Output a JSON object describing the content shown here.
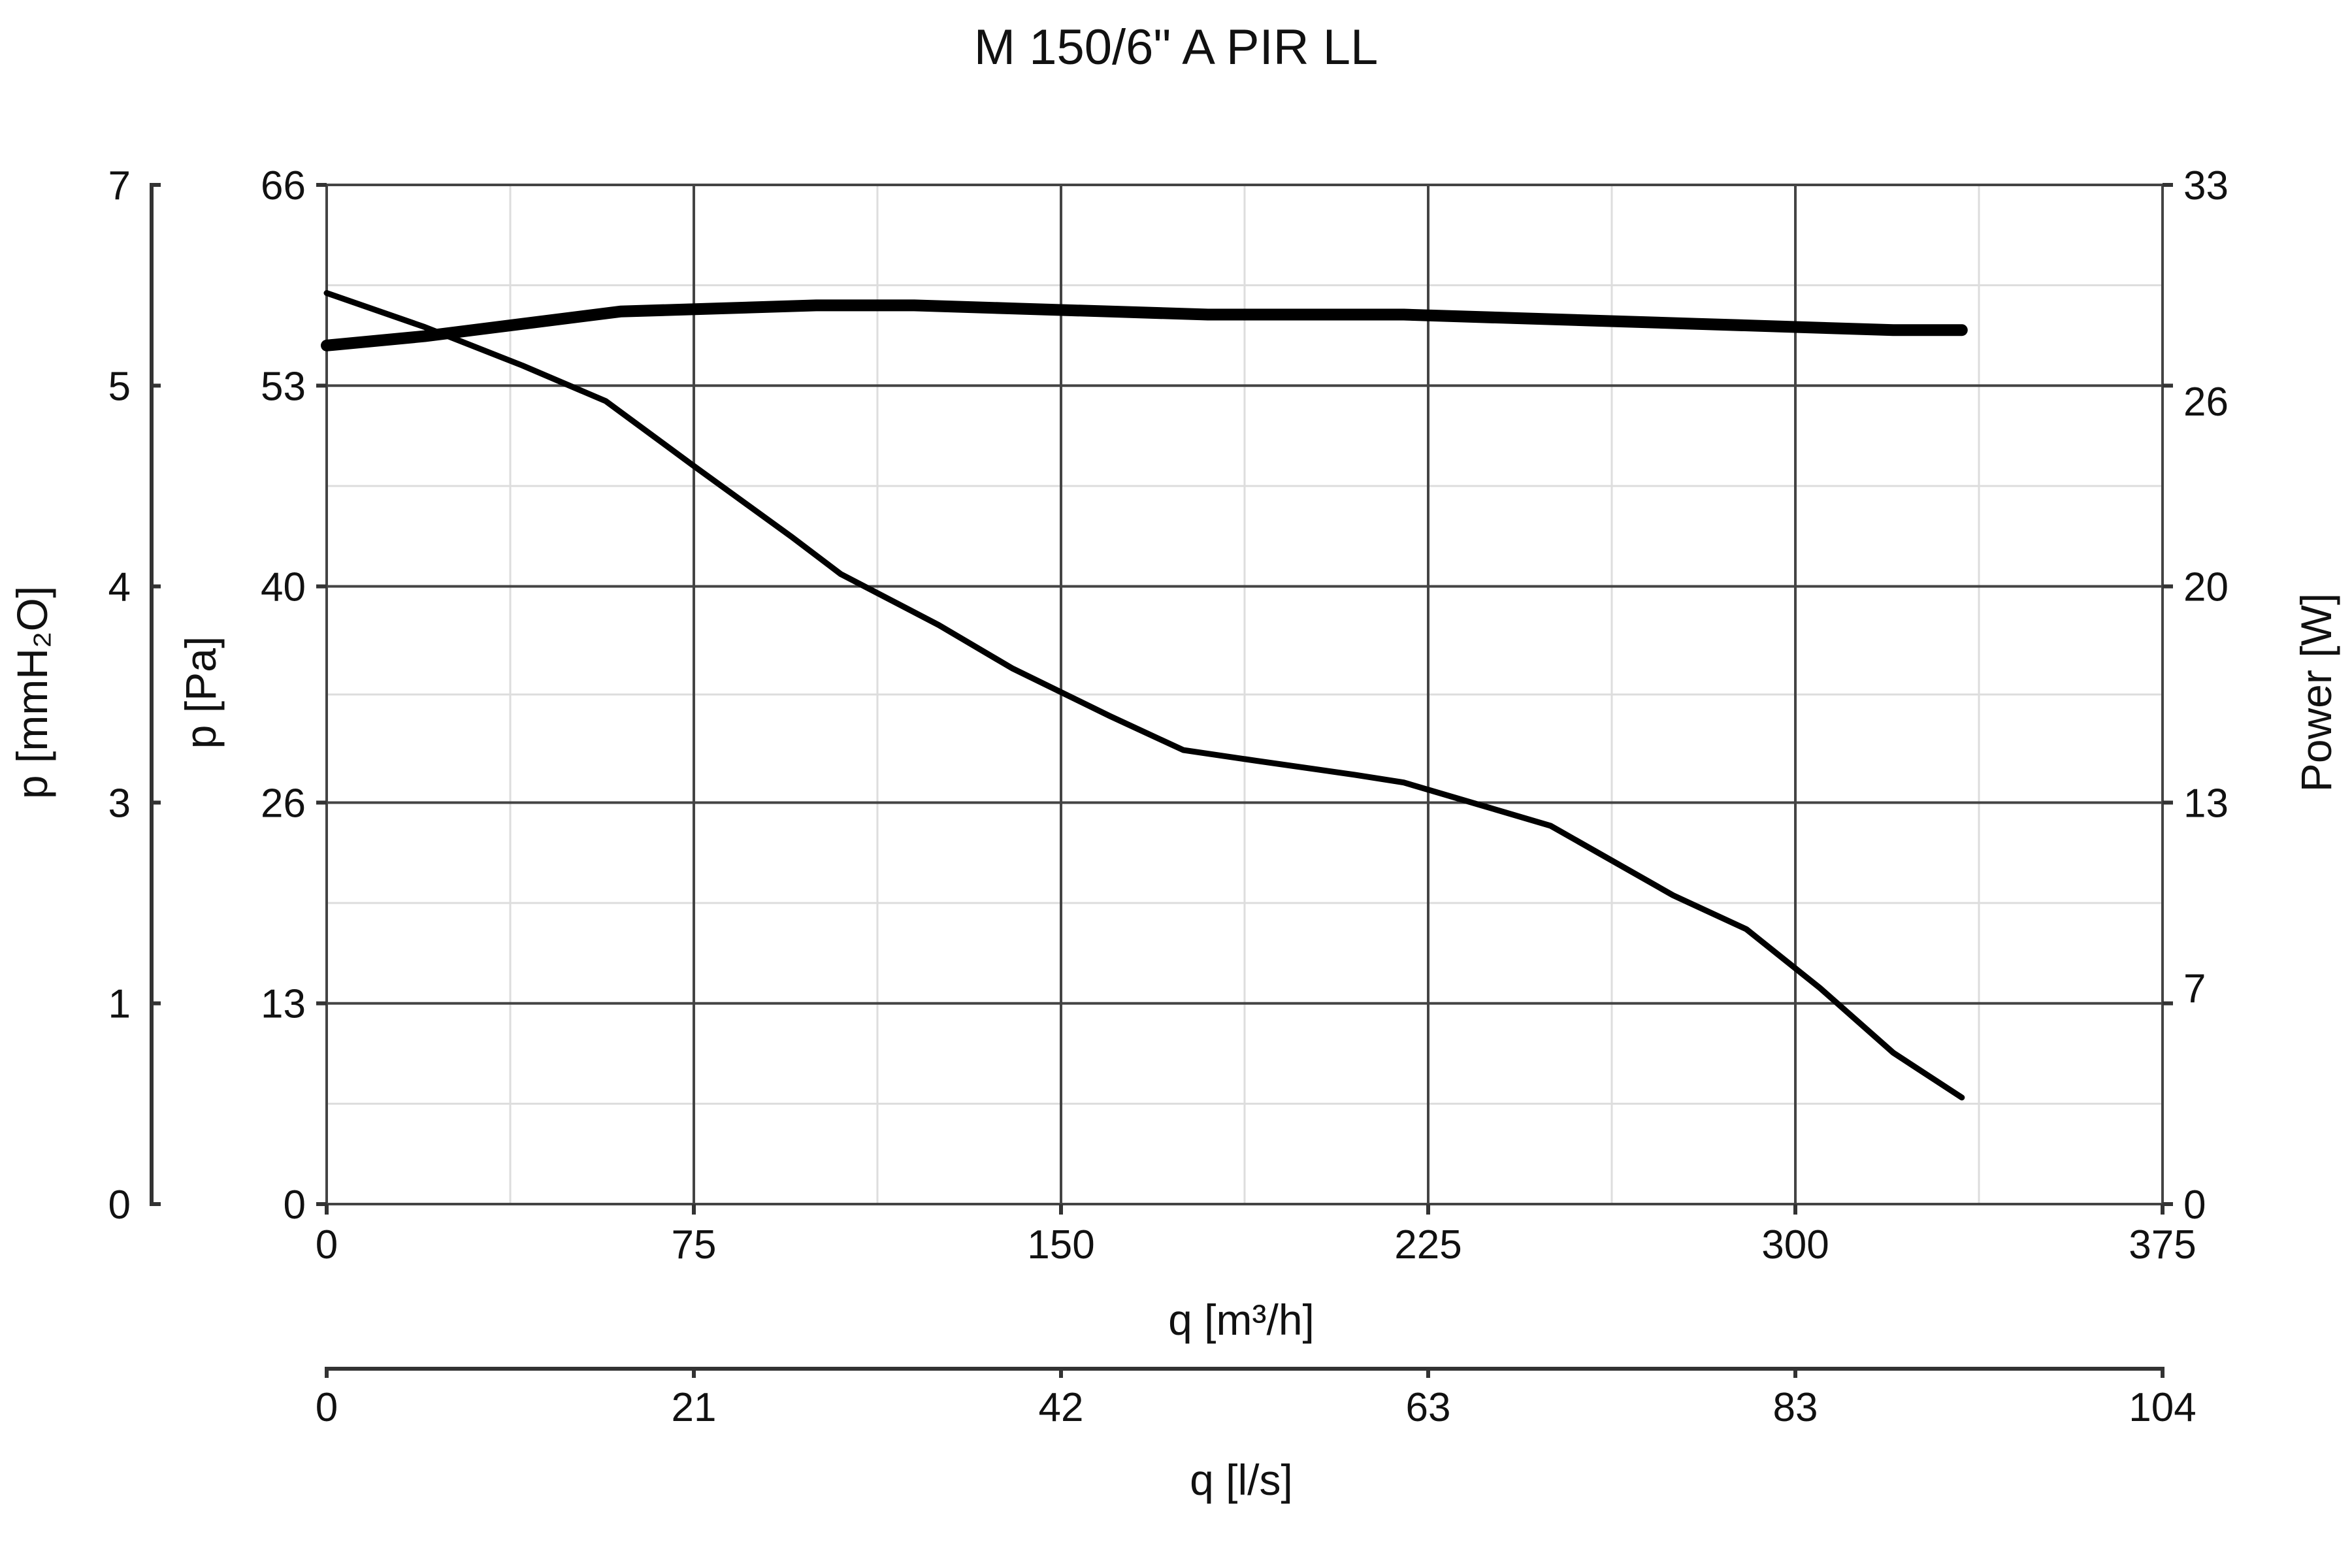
{
  "chart_data": {
    "type": "line",
    "title": "M 150/6\" A PIR LL",
    "x_axis": {
      "label": "q [m³/h]",
      "range": [
        0,
        375
      ],
      "ticks": [
        0,
        75,
        150,
        225,
        300,
        375
      ]
    },
    "x2_axis": {
      "label": "q [l/s]",
      "range": [
        0,
        104.17
      ],
      "ticks": [
        0,
        21,
        42,
        63,
        83,
        104
      ],
      "tick_values_m3h": [
        0,
        75,
        150,
        225,
        300,
        375
      ]
    },
    "y_axis": {
      "label": "p [Pa]",
      "range": [
        0,
        66
      ],
      "ticks": [
        0,
        13,
        26,
        40,
        53,
        66
      ]
    },
    "y2_axis": {
      "label": "Power [W]",
      "range": [
        0,
        33
      ],
      "ticks": [
        0,
        7,
        13,
        20,
        26,
        33
      ]
    },
    "y_outer_axis": {
      "label": "p [mmH₂O]",
      "range": [
        0,
        6.73
      ],
      "ticks": [
        0,
        1,
        3,
        4,
        5,
        7
      ],
      "tick_values_pa": [
        0,
        13,
        26,
        40,
        53,
        66
      ]
    },
    "grid": true,
    "series": [
      {
        "axis": "pressure",
        "x": [
          0,
          20,
          40,
          57,
          75,
          95,
          105,
          125,
          140,
          160,
          175,
          190,
          210,
          220,
          235,
          250,
          265,
          275,
          290,
          305,
          320,
          334
        ],
        "y": [
          59.0,
          56.8,
          54.3,
          52.0,
          47.8,
          43.2,
          40.8,
          37.5,
          34.7,
          31.6,
          29.4,
          28.7,
          27.8,
          27.3,
          25.9,
          24.5,
          21.8,
          20.0,
          17.8,
          14.0,
          9.8,
          6.9
        ]
      },
      {
        "axis": "power",
        "x": [
          0,
          20,
          40,
          60,
          80,
          100,
          120,
          140,
          160,
          180,
          200,
          220,
          240,
          260,
          280,
          300,
          320,
          334
        ],
        "y": [
          27.8,
          28.1,
          28.5,
          28.9,
          29.0,
          29.1,
          29.1,
          29.0,
          28.9,
          28.8,
          28.8,
          28.8,
          28.7,
          28.6,
          28.5,
          28.4,
          28.3,
          28.3
        ]
      }
    ]
  }
}
